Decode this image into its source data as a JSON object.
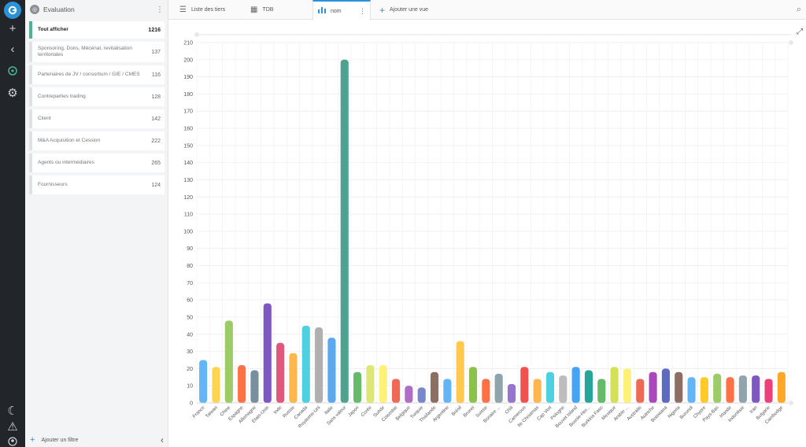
{
  "sidebar": {
    "title": "Evaluation",
    "items": [
      {
        "label": "Tout afficher",
        "count": "1216"
      },
      {
        "label": "Sponsoring, Dons, Mécénat, revitalisation territoriales",
        "count": "137"
      },
      {
        "label": "Partenaires de JV / consortium / GIE / CMES",
        "count": "116"
      },
      {
        "label": "Contreparties trading",
        "count": "128"
      },
      {
        "label": "Client",
        "count": "142"
      },
      {
        "label": "M&A Acquisition et Cession",
        "count": "222"
      },
      {
        "label": "Agents ou intermédiaires",
        "count": "265"
      },
      {
        "label": "Fournisseurs",
        "count": "124"
      }
    ],
    "add_filter_label": "Ajouter un filtre"
  },
  "tabs": [
    {
      "label": "Liste des tiers",
      "icon": "list-icon"
    },
    {
      "label": "TDB",
      "icon": "dashboard-icon"
    },
    {
      "label": "nom",
      "icon": "bar-chart-icon"
    },
    {
      "label": "Ajouter une vue",
      "icon": "plus-icon"
    }
  ],
  "colors": {
    "accent": "#2a92d6",
    "active_category": "#4bb596",
    "rail": "#22262b"
  },
  "chart_data": {
    "type": "bar",
    "ylim": [
      0,
      210
    ],
    "yticks": [
      0,
      10,
      20,
      30,
      40,
      50,
      60,
      70,
      80,
      90,
      100,
      110,
      120,
      130,
      140,
      150,
      160,
      170,
      180,
      190,
      200,
      210
    ],
    "grid": true,
    "categories": [
      "France",
      "Taiwan",
      "Chine",
      "Espagne",
      "Allemagne",
      "Etats-Unis",
      "Inde",
      "Russie",
      "Canada",
      "Royaume-Uni",
      "Italie",
      "Sans valeur",
      "Japon",
      "Corée",
      "Suède",
      "Colombie",
      "Belgique",
      "Turquie",
      "Thaïlande",
      "Argentine",
      "Brésil",
      "Brunei",
      "Suisse",
      "Bonaire ...",
      "Chili",
      "Cameroun",
      "Ile Christmas",
      "Cap Vert",
      "Pologne",
      "Bouvet Island",
      "Bosnie-Her...",
      "Burkina Faso",
      "Mexique",
      "Arabie ...",
      "Australie",
      "Autriche",
      "Botswana",
      "Nigeria",
      "Burundi",
      "Chypre",
      "Pays-Bas",
      "Irlande",
      "Indonésie",
      "Iran",
      "Bulgarie",
      "Cambodge"
    ],
    "values": [
      25,
      21,
      48,
      22,
      19,
      58,
      35,
      29,
      45,
      44,
      38,
      200,
      18,
      22,
      22,
      14,
      10,
      9,
      18,
      14,
      36,
      21,
      14,
      17,
      11,
      21,
      14,
      18,
      16,
      21,
      19,
      14,
      21,
      20,
      14,
      18,
      20,
      18,
      15,
      15,
      17,
      15,
      16,
      16,
      14,
      18
    ],
    "colors": [
      "#64b5f6",
      "#ffd54f",
      "#9ccc65",
      "#ff7043",
      "#78909c",
      "#7e57c2",
      "#e0577c",
      "#ffb74d",
      "#4dd0e1",
      "#b0b0b0",
      "#5aa9f0",
      "#4ea38f",
      "#66bb6a",
      "#dce775",
      "#fff176",
      "#ef6a55",
      "#b06cc9",
      "#7986cb",
      "#8d6e63",
      "#64b5f6",
      "#ffc94d",
      "#8bc34a",
      "#ff7043",
      "#90a4ae",
      "#9575cd",
      "#ef5350",
      "#ffb74d",
      "#4dd0e1",
      "#bdbdbd",
      "#42a5f5",
      "#26a69a",
      "#66bb6a",
      "#d4e157",
      "#fff176",
      "#ef6a55",
      "#ab47bc",
      "#5c6bc0",
      "#8d6e63",
      "#64b5f6",
      "#ffca28",
      "#9ccc65",
      "#ff7043",
      "#90a4ae",
      "#7e57c2",
      "#ec407a",
      "#ffa726"
    ]
  }
}
